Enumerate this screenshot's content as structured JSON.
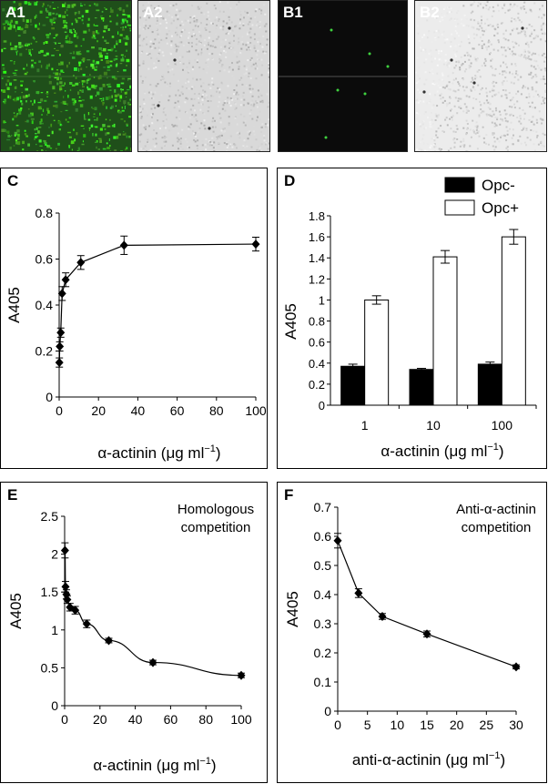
{
  "image_panels": [
    {
      "label": "A1",
      "tone": "#2b8a25"
    },
    {
      "label": "A2",
      "tone": "#cfcfcf"
    },
    {
      "label": "B1",
      "tone": "#0b0b0b"
    },
    {
      "label": "B2",
      "tone": "#e8e8e8"
    }
  ],
  "chart_data": [
    {
      "panel": "C",
      "type": "line",
      "xlabel_prefix": "α-actinin (",
      "xlabel_unit": "μg ml",
      "xlabel_exp": "−1",
      "xlabel_suffix": ")",
      "ylabel": "A405",
      "xlim": [
        0,
        100
      ],
      "ylim": [
        0,
        0.8
      ],
      "xticks": [
        "0",
        "20",
        "40",
        "60",
        "80",
        "100"
      ],
      "yticks": [
        "0",
        "0.2",
        "0.4",
        "0.6",
        "0.8"
      ],
      "x": [
        0.1,
        0.3,
        0.8,
        1.5,
        3.3,
        11,
        33,
        100
      ],
      "y": [
        0.15,
        0.22,
        0.28,
        0.45,
        0.51,
        0.585,
        0.66,
        0.665
      ],
      "err": [
        0.02,
        0.02,
        0.02,
        0.03,
        0.03,
        0.03,
        0.04,
        0.03
      ]
    },
    {
      "panel": "D",
      "type": "bar",
      "xlabel_prefix": "α-actinin (",
      "xlabel_unit": "μg ml",
      "xlabel_exp": "−1",
      "xlabel_suffix": ")",
      "ylabel": "A405",
      "categories": [
        "1",
        "10",
        "100"
      ],
      "ylim": [
        0,
        1.8
      ],
      "yticks": [
        "0",
        "0.2",
        "0.4",
        "0.6",
        "0.8",
        "1",
        "1.2",
        "1.4",
        "1.6",
        "1.8"
      ],
      "series": [
        {
          "name": "Opc-",
          "color": "#000000",
          "values": [
            0.37,
            0.34,
            0.39
          ],
          "err": [
            0.02,
            0.01,
            0.02
          ]
        },
        {
          "name": "Opc+",
          "color": "#ffffff",
          "values": [
            1.0,
            1.41,
            1.6
          ],
          "err": [
            0.04,
            0.06,
            0.07
          ]
        }
      ],
      "legend_position": "top-right"
    },
    {
      "panel": "E",
      "type": "line",
      "annotation": [
        "Homologous",
        "competition"
      ],
      "xlabel_prefix": "α-actinin (",
      "xlabel_unit": "μg ml",
      "xlabel_exp": "−1",
      "xlabel_suffix": ")",
      "ylabel": "A405",
      "xlim": [
        0,
        100
      ],
      "ylim": [
        0,
        2.5
      ],
      "xticks": [
        "0",
        "20",
        "40",
        "60",
        "80",
        "100"
      ],
      "yticks": [
        "0",
        "0.5",
        "1",
        "1.5",
        "2",
        "2.5"
      ],
      "x": [
        0.2,
        0.5,
        1,
        1.5,
        3,
        6,
        12.5,
        25,
        50,
        100
      ],
      "y": [
        2.05,
        1.57,
        1.47,
        1.4,
        1.3,
        1.26,
        1.08,
        0.86,
        0.57,
        0.4
      ],
      "err": [
        0.1,
        0.07,
        0.06,
        0.05,
        0.05,
        0.05,
        0.05,
        0.03,
        0.03,
        0.03
      ]
    },
    {
      "panel": "F",
      "type": "line",
      "annotation": [
        "Anti-α-actinin",
        "competition"
      ],
      "xlabel_prefix": "anti-α-actinin (",
      "xlabel_unit": "μg ml",
      "xlabel_exp": "−1",
      "xlabel_suffix": ")",
      "ylabel": "A405",
      "xlim": [
        0,
        30
      ],
      "ylim": [
        0,
        0.7
      ],
      "xticks": [
        "0",
        "5",
        "10",
        "15",
        "20",
        "25",
        "30"
      ],
      "yticks": [
        "0",
        "0.1",
        "0.2",
        "0.3",
        "0.4",
        "0.5",
        "0.6",
        "0.7"
      ],
      "x": [
        0,
        3.5,
        7.5,
        15,
        30
      ],
      "y": [
        0.585,
        0.405,
        0.325,
        0.265,
        0.152
      ],
      "err": [
        0.025,
        0.015,
        0.01,
        0.01,
        0.007
      ]
    }
  ]
}
